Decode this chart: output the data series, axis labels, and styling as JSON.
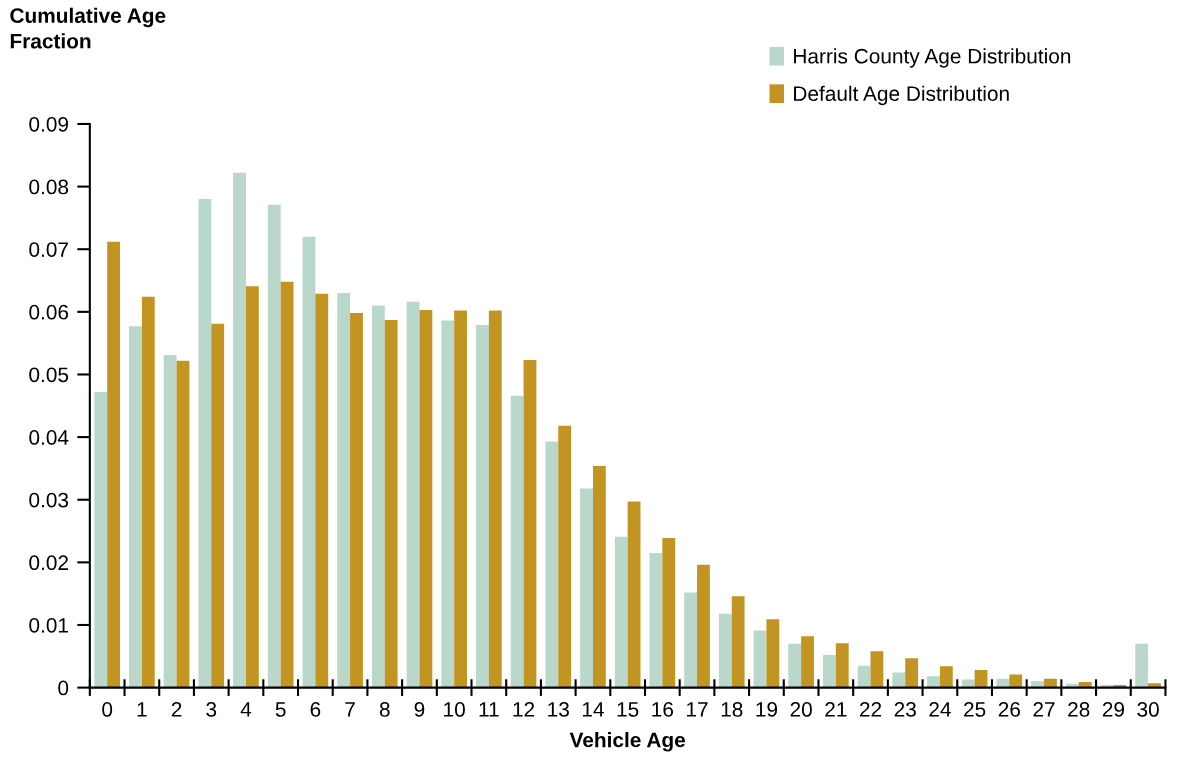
{
  "chart_data": {
    "type": "bar",
    "ylabel": "Cumulative Age\nFraction",
    "xlabel": "Vehicle Age",
    "categories": [
      "0",
      "1",
      "2",
      "3",
      "4",
      "5",
      "6",
      "7",
      "8",
      "9",
      "10",
      "11",
      "12",
      "13",
      "14",
      "15",
      "16",
      "17",
      "18",
      "19",
      "20",
      "21",
      "22",
      "23",
      "24",
      "25",
      "26",
      "27",
      "28",
      "29",
      "30"
    ],
    "series": [
      {
        "name": "Harris County Age Distribution",
        "color": "#b9d7cb",
        "values": [
          0.0472,
          0.0577,
          0.0531,
          0.078,
          0.0822,
          0.0771,
          0.072,
          0.063,
          0.061,
          0.0616,
          0.0586,
          0.0579,
          0.0466,
          0.0393,
          0.0318,
          0.0241,
          0.0215,
          0.0152,
          0.0118,
          0.0091,
          0.007,
          0.0052,
          0.0035,
          0.0024,
          0.0018,
          0.0013,
          0.0014,
          0.001,
          0.0006,
          0.0004,
          0.007
        ]
      },
      {
        "name": "Default Age Distribution",
        "color": "#c29523",
        "values": [
          0.0712,
          0.0624,
          0.0522,
          0.0581,
          0.0641,
          0.0648,
          0.0629,
          0.0598,
          0.0587,
          0.0603,
          0.0602,
          0.0602,
          0.0523,
          0.0418,
          0.0354,
          0.0297,
          0.0239,
          0.0196,
          0.0146,
          0.0109,
          0.0082,
          0.0071,
          0.0058,
          0.0047,
          0.0034,
          0.0028,
          0.0021,
          0.0014,
          0.0009,
          0.0004,
          0.0007
        ]
      }
    ],
    "ylim": [
      0,
      0.09
    ],
    "yticks": [
      {
        "value": 0,
        "label": "0"
      },
      0.01,
      0.02,
      0.03,
      0.04,
      0.05,
      0.06,
      0.07,
      0.08,
      0.09
    ],
    "grid": false,
    "legend": "top right"
  }
}
